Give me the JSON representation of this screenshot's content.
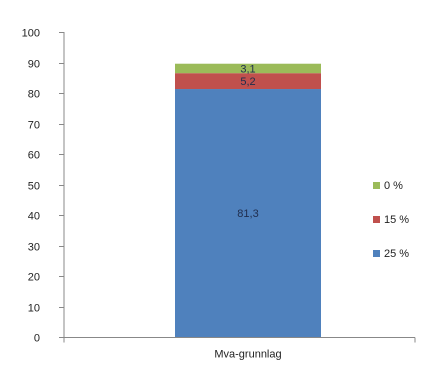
{
  "chart_data": {
    "type": "bar",
    "stacked": true,
    "categories": [
      "Mva-grunnlag"
    ],
    "series": [
      {
        "name": "25 %",
        "values": [
          81.3
        ],
        "label": "81,3",
        "color": "#4f81bd"
      },
      {
        "name": "15 %",
        "values": [
          5.2
        ],
        "label": "5,2",
        "color": "#c0504d"
      },
      {
        "name": "0 %",
        "values": [
          3.1
        ],
        "label": "3,1",
        "color": "#9bbb59"
      }
    ],
    "ylim": [
      0,
      100
    ],
    "yticks": [
      0,
      10,
      20,
      30,
      40,
      50,
      60,
      70,
      80,
      90,
      100
    ],
    "ytick_labels": [
      "0",
      "10",
      "20",
      "30",
      "40",
      "50",
      "60",
      "70",
      "80",
      "90",
      "100"
    ],
    "grid": false,
    "legend": {
      "placement": "right",
      "order": [
        "0 %",
        "15 %",
        "25 %"
      ]
    }
  }
}
